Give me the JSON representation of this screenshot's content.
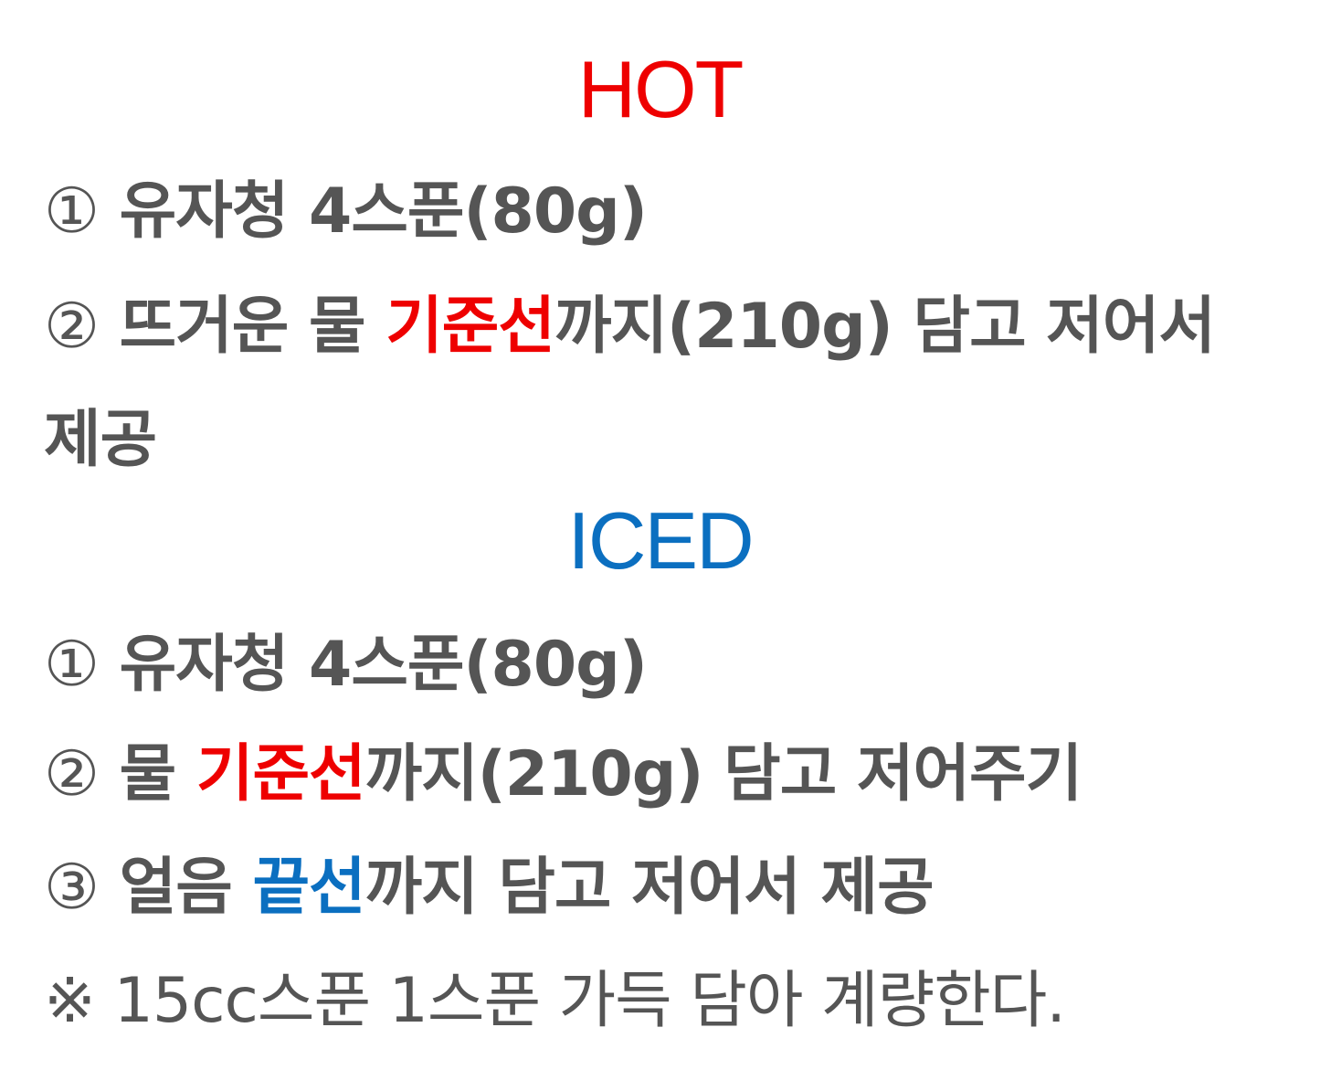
{
  "colors": {
    "text": "#555555",
    "hot": "#ee0000",
    "iced": "#0b6fc0"
  },
  "hot": {
    "title": "HOT",
    "step1": {
      "marker": "①",
      "text": "유자청 4스푼(80g)"
    },
    "step2": {
      "marker": "②",
      "before": "뜨거운 물 ",
      "highlight": "기준선",
      "after": "까지(210g) 담고 저어서 제공"
    }
  },
  "iced": {
    "title": "ICED",
    "step1": {
      "marker": "①",
      "text": "유자청 4스푼(80g)"
    },
    "step2": {
      "marker": "②",
      "before": "물 ",
      "highlight": "기준선",
      "after": "까지(210g) 담고 저어주기"
    },
    "step3": {
      "marker": "③",
      "before": "얼음 ",
      "highlight": "끝선",
      "after": "까지 담고 저어서 제공"
    }
  },
  "note": "※ 15cc스푼 1스푼 가득 담아 계량한다."
}
